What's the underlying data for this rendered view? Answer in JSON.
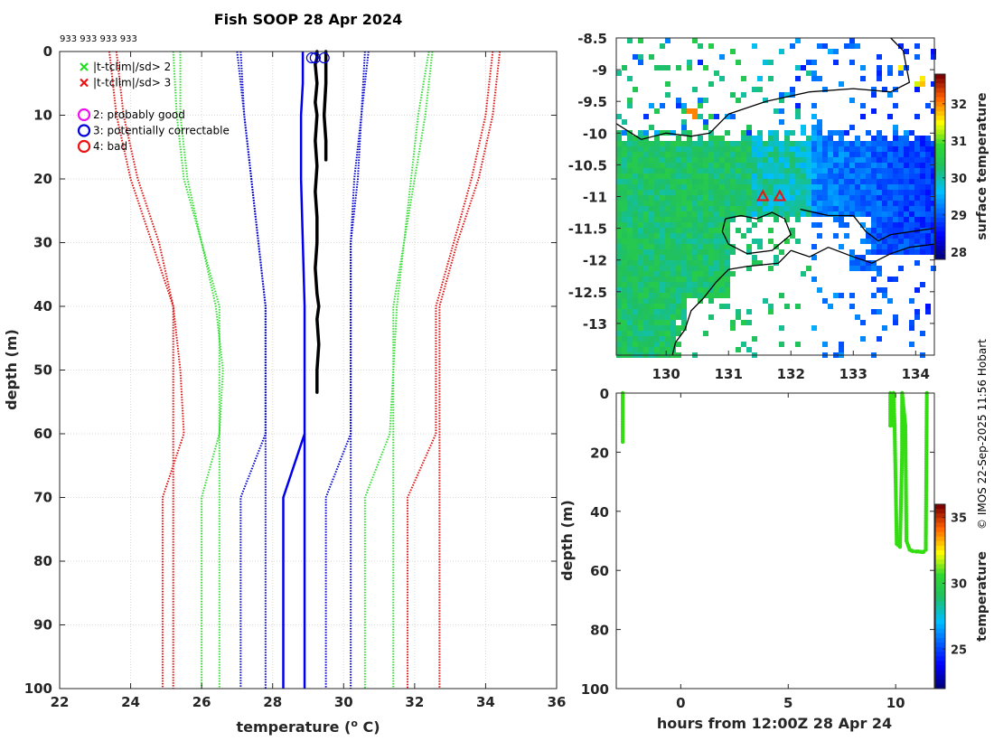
{
  "figure": {
    "credit": "© IMOS 22-Sep-2025 11:56 Hobart"
  },
  "chart_data": [
    {
      "id": "profile",
      "type": "line",
      "title": "Fish SOOP 28 Apr 2024",
      "xlabel": "temperature (",
      "xlabel_super": "o",
      "xlabel_end": " C)",
      "ylabel": "depth (m)",
      "xlim": [
        22,
        36
      ],
      "ylim": [
        0,
        100
      ],
      "y_reversed": true,
      "grid": true,
      "xticks": [
        22,
        24,
        26,
        28,
        30,
        32,
        34,
        36
      ],
      "yticks": [
        0,
        10,
        20,
        30,
        40,
        50,
        60,
        70,
        80,
        90,
        100
      ],
      "top_annotation": "933 933 933 933",
      "legend": {
        "position": "top-left",
        "entries": [
          {
            "marker": "x",
            "color": "#22dd22",
            "label": "|t-tclim|/sd> 2"
          },
          {
            "marker": "x",
            "color": "#ee1111",
            "label": "|t-tclim|/sd> 3"
          },
          {
            "marker": "o",
            "color": "#ee11ee",
            "label": "2: probably good"
          },
          {
            "marker": "o",
            "color": "#0000dd",
            "label": "3: potentially correctable"
          },
          {
            "marker": "o",
            "color": "#ee1111",
            "label": "4: bad"
          }
        ]
      },
      "series": [
        {
          "name": "red outer left 1",
          "color": "#dd1111",
          "style": "dotted",
          "depth": [
            0,
            10,
            20,
            30,
            40,
            50,
            60,
            70,
            100
          ],
          "temp": [
            23.4,
            23.6,
            24.0,
            24.6,
            25.2,
            25.2,
            25.2,
            25.2,
            25.2
          ]
        },
        {
          "name": "red outer left 2",
          "color": "#dd1111",
          "style": "dotted",
          "depth": [
            0,
            10,
            20,
            30,
            40,
            50,
            60,
            70,
            100
          ],
          "temp": [
            23.6,
            23.8,
            24.2,
            24.8,
            25.2,
            25.4,
            25.5,
            24.9,
            24.9
          ]
        },
        {
          "name": "green left 1",
          "color": "#33dd33",
          "style": "dotted",
          "depth": [
            0,
            10,
            20,
            30,
            40,
            50,
            60,
            70,
            100
          ],
          "temp": [
            25.2,
            25.3,
            25.5,
            26.0,
            26.5,
            26.5,
            26.5,
            26.5,
            26.5
          ]
        },
        {
          "name": "green left 2",
          "color": "#33dd33",
          "style": "dotted",
          "depth": [
            0,
            10,
            20,
            30,
            40,
            50,
            60,
            70,
            100
          ],
          "temp": [
            25.4,
            25.4,
            25.6,
            26.0,
            26.4,
            26.6,
            26.5,
            26.0,
            26.0
          ]
        },
        {
          "name": "blue left 1",
          "color": "#0000cc",
          "style": "dotted",
          "depth": [
            0,
            10,
            20,
            30,
            40,
            50,
            60,
            70,
            100
          ],
          "temp": [
            27.0,
            27.2,
            27.4,
            27.6,
            27.8,
            27.8,
            27.8,
            27.8,
            27.8
          ]
        },
        {
          "name": "blue left 2",
          "color": "#0000cc",
          "style": "dotted",
          "depth": [
            0,
            10,
            20,
            30,
            40,
            50,
            60,
            70,
            100
          ],
          "temp": [
            27.1,
            27.2,
            27.4,
            27.6,
            27.8,
            27.8,
            27.8,
            27.1,
            27.1
          ]
        },
        {
          "name": "climatology mean",
          "color": "#0000ee",
          "style": "solid",
          "depth": [
            0,
            5,
            10,
            20,
            30,
            40,
            50,
            60,
            70,
            100
          ],
          "temp": [
            28.85,
            28.85,
            28.8,
            28.8,
            28.85,
            28.9,
            28.9,
            28.9,
            28.3,
            28.3
          ]
        },
        {
          "name": "climatology mean 2",
          "color": "#0000ee",
          "style": "solid",
          "depth": [
            60,
            100
          ],
          "temp": [
            28.9,
            28.9
          ]
        },
        {
          "name": "blue right 1",
          "color": "#0000cc",
          "style": "dotted",
          "depth": [
            0,
            10,
            20,
            30,
            40,
            50,
            60,
            70,
            100
          ],
          "temp": [
            30.6,
            30.5,
            30.3,
            30.2,
            30.2,
            30.2,
            30.2,
            29.5,
            29.5
          ]
        },
        {
          "name": "blue right 2",
          "color": "#0000cc",
          "style": "dotted",
          "depth": [
            0,
            10,
            20,
            30,
            40,
            50,
            60,
            70,
            100
          ],
          "temp": [
            30.7,
            30.5,
            30.4,
            30.2,
            30.2,
            30.2,
            30.2,
            30.2,
            30.2
          ]
        },
        {
          "name": "green right 1",
          "color": "#33dd33",
          "style": "dotted",
          "depth": [
            0,
            10,
            20,
            30,
            40,
            50,
            60,
            70,
            100
          ],
          "temp": [
            32.4,
            32.1,
            31.9,
            31.7,
            31.4,
            31.4,
            31.3,
            30.6,
            30.6
          ]
        },
        {
          "name": "green right 2",
          "color": "#33dd33",
          "style": "dotted",
          "depth": [
            0,
            10,
            20,
            30,
            40,
            50,
            60,
            70,
            100
          ],
          "temp": [
            32.5,
            32.3,
            32.0,
            31.7,
            31.5,
            31.4,
            31.4,
            31.4,
            31.4
          ]
        },
        {
          "name": "red outer right 1",
          "color": "#dd1111",
          "style": "dotted",
          "depth": [
            0,
            10,
            20,
            30,
            40,
            50,
            60,
            70,
            100
          ],
          "temp": [
            34.2,
            34.0,
            33.6,
            33.1,
            32.6,
            32.6,
            32.6,
            31.8,
            31.8
          ]
        },
        {
          "name": "red outer right 2",
          "color": "#dd1111",
          "style": "dotted",
          "depth": [
            0,
            10,
            20,
            30,
            40,
            50,
            60,
            70,
            100
          ],
          "temp": [
            34.4,
            34.2,
            33.8,
            33.2,
            32.7,
            32.7,
            32.7,
            32.7,
            32.7
          ]
        },
        {
          "name": "observed profile",
          "color": "#000000",
          "style": "solid-thick",
          "depth": [
            0,
            1,
            2,
            5,
            8,
            10,
            14,
            18,
            22,
            26,
            30,
            34,
            38,
            40,
            42,
            46,
            50,
            53.5
          ],
          "temp": [
            29.25,
            29.25,
            29.2,
            29.25,
            29.2,
            29.25,
            29.2,
            29.25,
            29.2,
            29.25,
            29.25,
            29.2,
            29.25,
            29.3,
            29.25,
            29.3,
            29.25,
            29.25
          ]
        },
        {
          "name": "observed branch",
          "color": "#000000",
          "style": "solid-thick",
          "depth": [
            0,
            5,
            10,
            14,
            17
          ],
          "temp": [
            29.5,
            29.5,
            29.45,
            29.5,
            29.5
          ]
        }
      ],
      "flag_circles": [
        {
          "temp": 29.1,
          "depth": 1,
          "color": "#0000dd"
        },
        {
          "temp": 29.2,
          "depth": 1,
          "color": "#0000dd"
        },
        {
          "temp": 29.45,
          "depth": 1,
          "color": "#0000dd"
        }
      ]
    },
    {
      "id": "sst_map",
      "type": "heatmap",
      "xlim": [
        129.2,
        134.3
      ],
      "ylim": [
        -13.5,
        -8.5
      ],
      "xticks": [
        130,
        131,
        132,
        133,
        134
      ],
      "yticks": [
        -8.5,
        -9,
        -9.5,
        -10,
        -10.5,
        -11,
        -11.5,
        -12,
        -12.5,
        -13
      ],
      "colorbar": {
        "label": "surface temperature",
        "range": [
          27.8,
          32.8
        ],
        "ticks": [
          28,
          29,
          30,
          31,
          32
        ]
      },
      "stations": [
        {
          "lon": 131.55,
          "lat": -11.0,
          "marker": "triangle",
          "color": "#ee1111"
        },
        {
          "lon": 131.82,
          "lat": -11.0,
          "marker": "triangle",
          "color": "#ee1111"
        }
      ]
    },
    {
      "id": "time_depth",
      "type": "scatter",
      "xlabel": "hours from 12:00Z 28 Apr 24",
      "ylabel": "depth (m)",
      "xlim": [
        -3,
        11.8
      ],
      "ylim": [
        0,
        100
      ],
      "y_reversed": true,
      "xticks": [
        0,
        5,
        10
      ],
      "yticks": [
        0,
        20,
        40,
        60,
        80,
        100
      ],
      "colorbar": {
        "label": "temperature",
        "range": [
          22,
          36
        ],
        "ticks": [
          25,
          30,
          35
        ]
      },
      "point_color": "#33dd11",
      "tracks": [
        {
          "x": [
            -2.7,
            -2.7
          ],
          "y": [
            0,
            16.5
          ]
        },
        {
          "x": [
            9.75,
            9.75,
            9.9,
            9.9,
            9.95,
            10.05,
            10.2,
            10.3,
            10.3,
            10.45,
            10.5,
            10.65,
            10.8,
            10.95,
            11.05,
            11.15,
            11.25,
            11.3,
            11.4,
            11.45
          ],
          "y": [
            0,
            11,
            11,
            0,
            11,
            51,
            52,
            20,
            0,
            11,
            50,
            53,
            53.5,
            53.6,
            53.6,
            53.7,
            53.8,
            53.7,
            53,
            0
          ]
        }
      ]
    }
  ]
}
